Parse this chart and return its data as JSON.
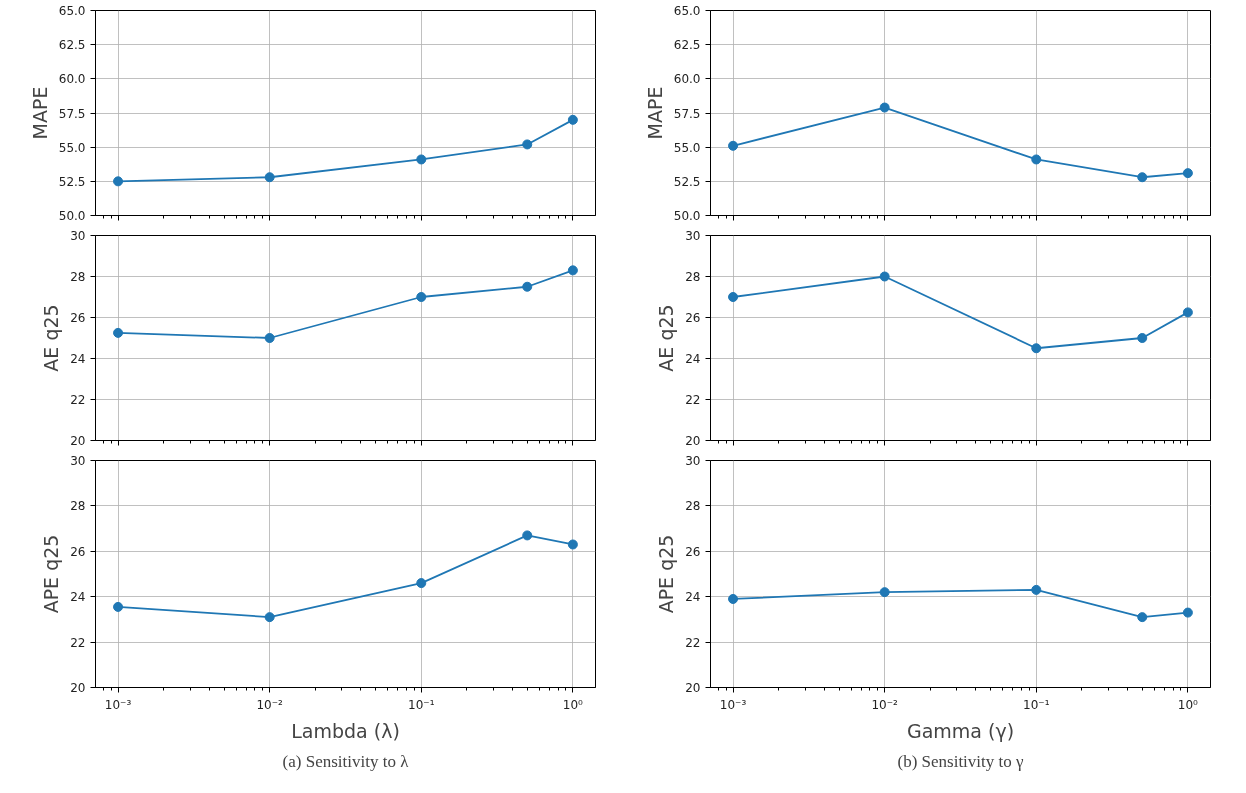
{
  "chart_data": [
    {
      "type": "line",
      "x": [
        0.001,
        0.01,
        0.1,
        0.5,
        1
      ],
      "series": [
        {
          "color": "#1f77b4",
          "values": [
            52.5,
            52.8,
            54.1,
            55.2,
            57.0
          ]
        }
      ],
      "ylabel": "MAPE",
      "log": "x",
      "xlim": [
        0.00071,
        1.41
      ],
      "xticks": [
        {
          "value": 0.001,
          "label": null
        },
        {
          "value": 0.01,
          "label": null
        },
        {
          "value": 0.1,
          "label": null
        },
        {
          "value": 1,
          "label": null
        }
      ],
      "ylim": [
        50,
        65
      ],
      "yticks": [
        {
          "value": 50,
          "label": "50.0"
        },
        {
          "value": 52.5,
          "label": "52.5"
        },
        {
          "value": 55,
          "label": "55.0"
        },
        {
          "value": 57.5,
          "label": "57.5"
        },
        {
          "value": 60,
          "label": "60.0"
        },
        {
          "value": 62.5,
          "label": "62.5"
        },
        {
          "value": 65,
          "label": "65.0"
        }
      ],
      "grid": true,
      "marker": "circle",
      "line_style": "solid",
      "tick_labels": "y"
    },
    {
      "type": "line",
      "x": [
        0.001,
        0.01,
        0.1,
        0.5,
        1
      ],
      "series": [
        {
          "color": "#1f77b4",
          "values": [
            55.1,
            57.9,
            54.1,
            52.8,
            53.1
          ]
        }
      ],
      "ylabel": "MAPE",
      "log": "x",
      "xlim": [
        0.00071,
        1.41
      ],
      "xticks": [
        {
          "value": 0.001,
          "label": null
        },
        {
          "value": 0.01,
          "label": null
        },
        {
          "value": 0.1,
          "label": null
        },
        {
          "value": 1,
          "label": null
        }
      ],
      "ylim": [
        50,
        65
      ],
      "yticks": [
        {
          "value": 50,
          "label": "50.0"
        },
        {
          "value": 52.5,
          "label": "52.5"
        },
        {
          "value": 55,
          "label": "55.0"
        },
        {
          "value": 57.5,
          "label": "57.5"
        },
        {
          "value": 60,
          "label": "60.0"
        },
        {
          "value": 62.5,
          "label": "62.5"
        },
        {
          "value": 65,
          "label": "65.0"
        }
      ],
      "grid": true,
      "marker": "circle",
      "line_style": "solid",
      "tick_labels": "y"
    },
    {
      "type": "line",
      "x": [
        0.001,
        0.01,
        0.1,
        0.5,
        1
      ],
      "series": [
        {
          "color": "#1f77b4",
          "values": [
            25.25,
            25.0,
            27.0,
            27.5,
            28.3
          ]
        }
      ],
      "ylabel": "AE q25",
      "log": "x",
      "xlim": [
        0.00071,
        1.41
      ],
      "xticks": [
        {
          "value": 0.001,
          "label": null
        },
        {
          "value": 0.01,
          "label": null
        },
        {
          "value": 0.1,
          "label": null
        },
        {
          "value": 1,
          "label": null
        }
      ],
      "ylim": [
        20,
        30
      ],
      "yticks": [
        20,
        22,
        24,
        26,
        28,
        30
      ],
      "grid": true,
      "marker": "circle",
      "line_style": "solid",
      "tick_labels": "y"
    },
    {
      "type": "line",
      "x": [
        0.001,
        0.01,
        0.1,
        0.5,
        1
      ],
      "series": [
        {
          "color": "#1f77b4",
          "values": [
            27.0,
            28.0,
            24.5,
            25.0,
            26.25
          ]
        }
      ],
      "ylabel": "AE q25",
      "log": "x",
      "xlim": [
        0.00071,
        1.41
      ],
      "xticks": [
        {
          "value": 0.001,
          "label": null
        },
        {
          "value": 0.01,
          "label": null
        },
        {
          "value": 0.1,
          "label": null
        },
        {
          "value": 1,
          "label": null
        }
      ],
      "ylim": [
        20,
        30
      ],
      "yticks": [
        20,
        22,
        24,
        26,
        28,
        30
      ],
      "grid": true,
      "marker": "circle",
      "line_style": "solid",
      "tick_labels": "y"
    },
    {
      "type": "line",
      "x": [
        0.001,
        0.01,
        0.1,
        0.5,
        1
      ],
      "series": [
        {
          "color": "#1f77b4",
          "values": [
            23.55,
            23.1,
            24.6,
            26.7,
            26.3
          ]
        }
      ],
      "ylabel": "APE q25",
      "xlabel": "Lambda (λ)",
      "log": "x",
      "xlim": [
        0.00071,
        1.41
      ],
      "xticks": [
        {
          "value": 0.001,
          "label": "10⁻³"
        },
        {
          "value": 0.01,
          "label": "10⁻²"
        },
        {
          "value": 0.1,
          "label": "10⁻¹"
        },
        {
          "value": 1,
          "label": "10⁰"
        }
      ],
      "ylim": [
        20,
        30
      ],
      "yticks": [
        20,
        22,
        24,
        26,
        28,
        30
      ],
      "grid": true,
      "marker": "circle",
      "line_style": "solid",
      "annotations": [
        "(a) Sensitivity to λ"
      ]
    },
    {
      "type": "line",
      "x": [
        0.001,
        0.01,
        0.1,
        0.5,
        1
      ],
      "series": [
        {
          "color": "#1f77b4",
          "values": [
            23.9,
            24.2,
            24.3,
            23.1,
            23.3
          ]
        }
      ],
      "ylabel": "APE q25",
      "xlabel": "Gamma (γ)",
      "log": "x",
      "xlim": [
        0.00071,
        1.41
      ],
      "xticks": [
        {
          "value": 0.001,
          "label": "10⁻³"
        },
        {
          "value": 0.01,
          "label": "10⁻²"
        },
        {
          "value": 0.1,
          "label": "10⁻¹"
        },
        {
          "value": 1,
          "label": "10⁰"
        }
      ],
      "ylim": [
        20,
        30
      ],
      "yticks": [
        20,
        22,
        24,
        26,
        28,
        30
      ],
      "grid": true,
      "marker": "circle",
      "line_style": "solid",
      "annotations": [
        "(b) Sensitivity to γ"
      ]
    }
  ]
}
